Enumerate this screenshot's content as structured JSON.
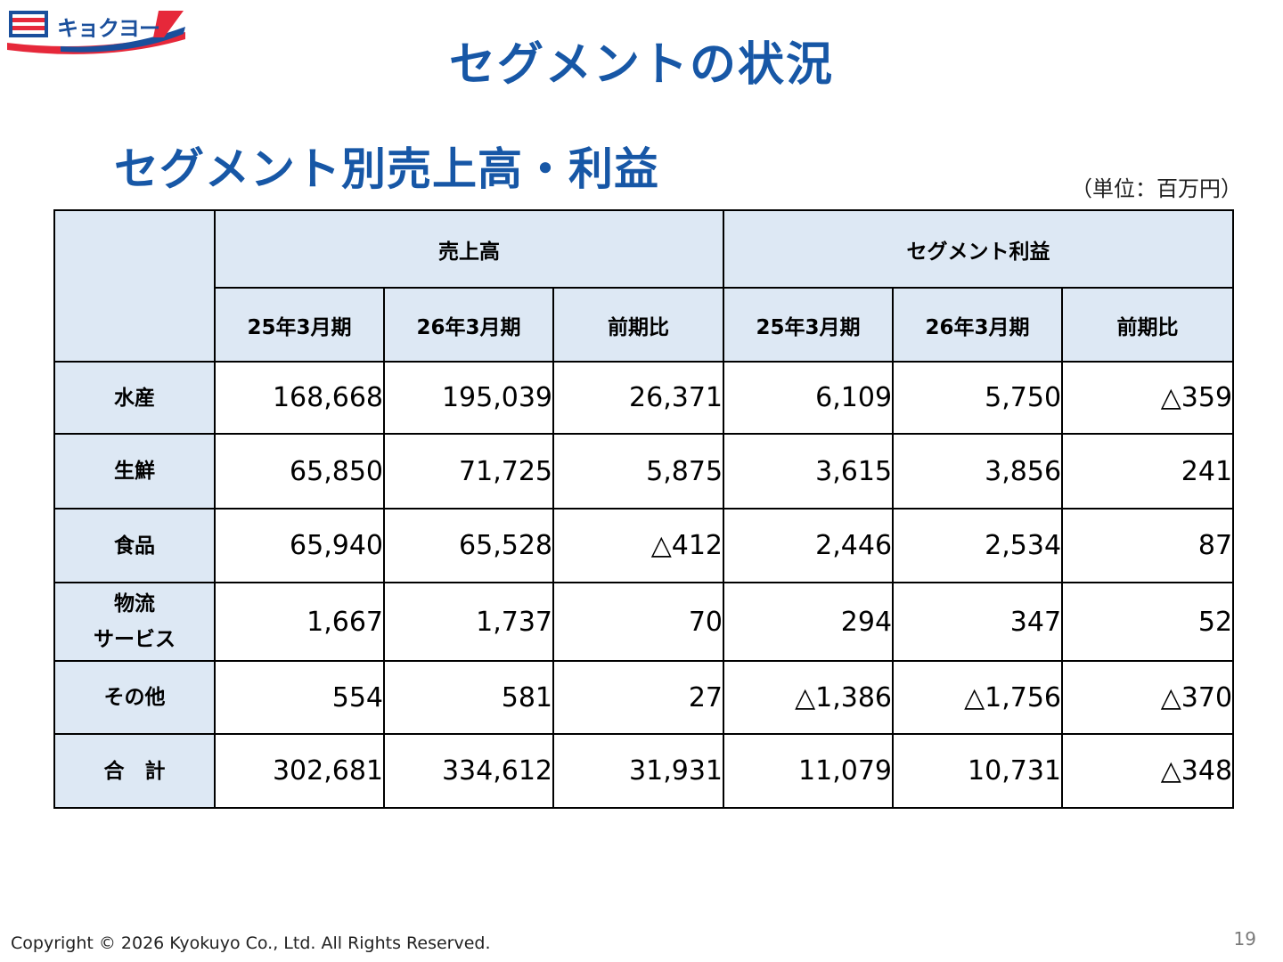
{
  "brand": {
    "name": "キョクヨー"
  },
  "title": "セグメントの状況",
  "subtitle": "セグメント別売上高・利益",
  "unit_label": "（単位：百万円）",
  "table": {
    "group_headers": [
      "売上高",
      "セグメント利益"
    ],
    "sub_headers": [
      "25年3月期",
      "26年3月期",
      "前期比",
      "25年3月期",
      "26年3月期",
      "前期比"
    ],
    "rows": [
      {
        "label": "水産",
        "values": [
          "168,668",
          "195,039",
          "26,371",
          "6,109",
          "5,750",
          "△359"
        ]
      },
      {
        "label": "生鮮",
        "values": [
          "65,850",
          "71,725",
          "5,875",
          "3,615",
          "3,856",
          "241"
        ]
      },
      {
        "label": "食品",
        "values": [
          "65,940",
          "65,528",
          "△412",
          "2,446",
          "2,534",
          "87"
        ]
      },
      {
        "label": "物流",
        "label2": "サービス",
        "values": [
          "1,667",
          "1,737",
          "70",
          "294",
          "347",
          "52"
        ]
      },
      {
        "label": "その他",
        "values": [
          "554",
          "581",
          "27",
          "△1,386",
          "△1,756",
          "△370"
        ]
      },
      {
        "label": "合　計",
        "values": [
          "302,681",
          "334,612",
          "31,931",
          "11,079",
          "10,731",
          "△348"
        ]
      }
    ]
  },
  "footer": {
    "copyright": "Copyright © 2026 Kyokuyo Co., Ltd. All Rights Reserved.",
    "page_number": "19"
  },
  "colors": {
    "title": "#1757a6",
    "header_bg": "#dde8f4",
    "logo_red": "#e6283a",
    "logo_blue": "#1a4f9c"
  }
}
